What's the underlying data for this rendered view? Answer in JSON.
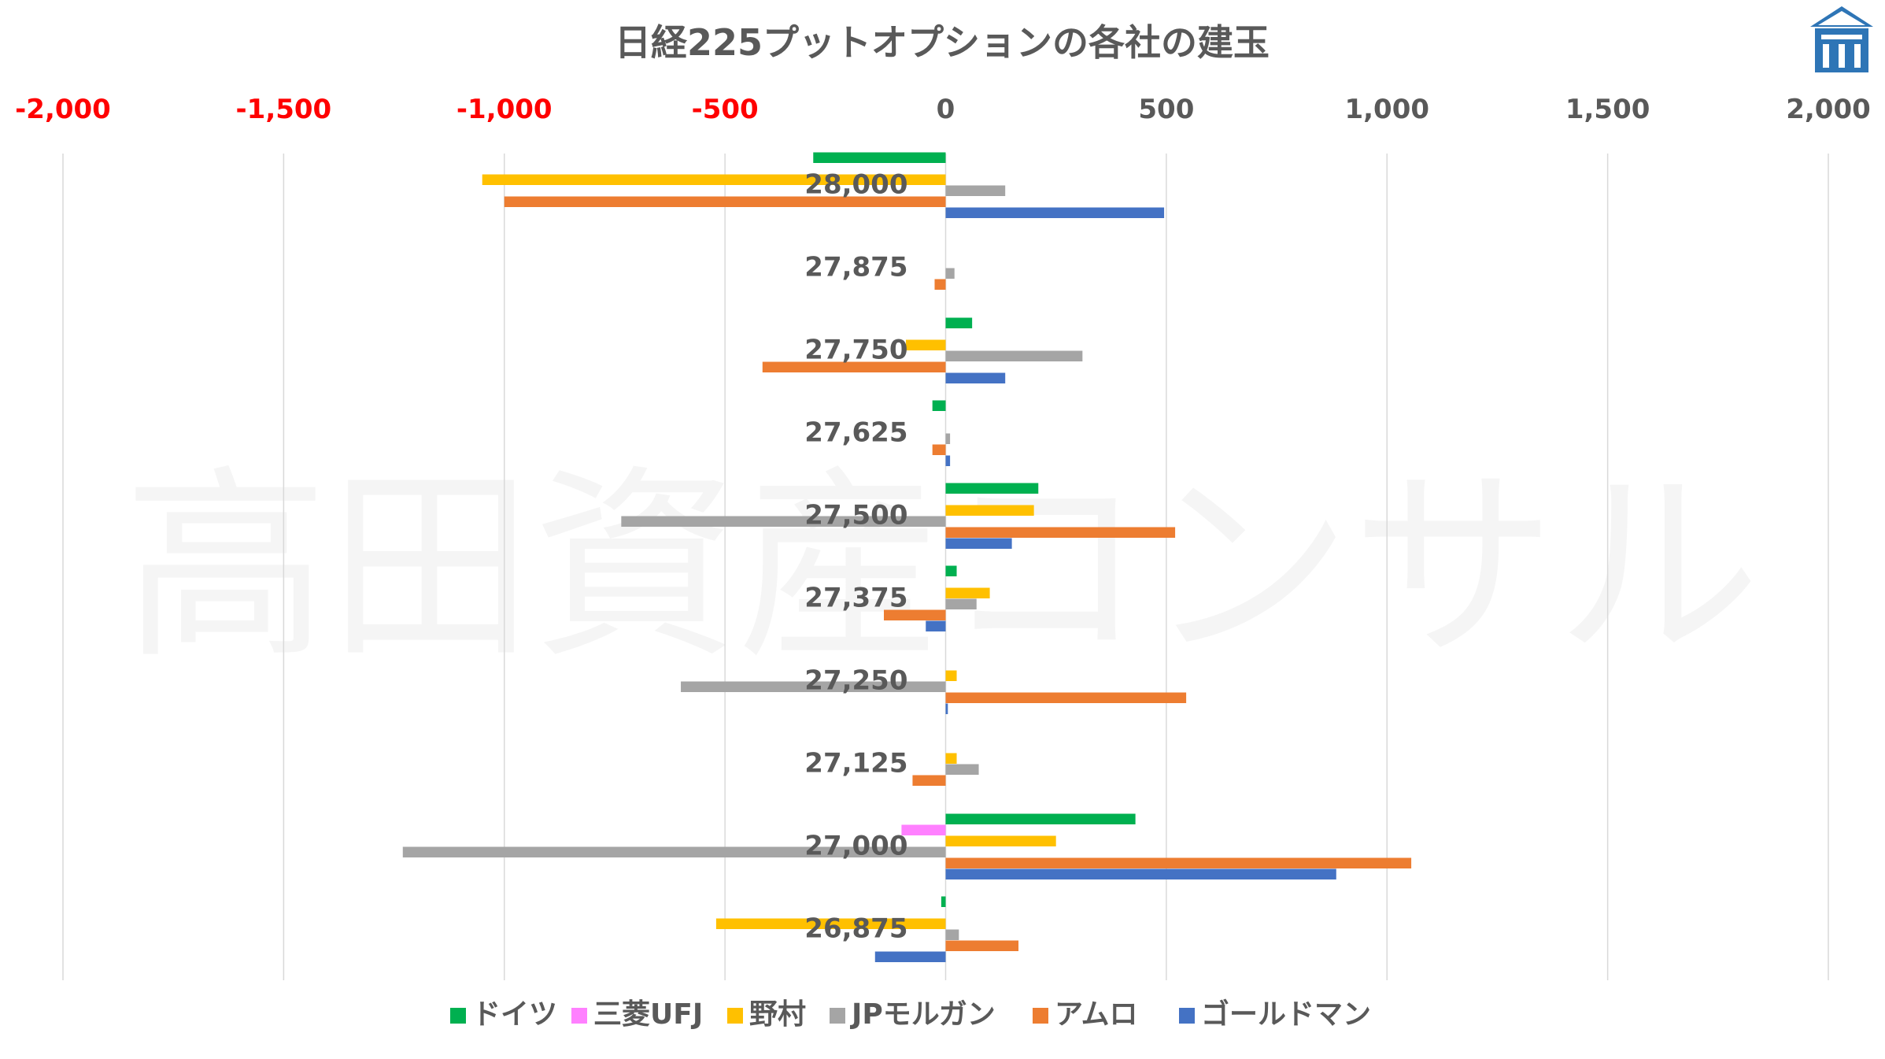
{
  "chart_data": {
    "type": "bar",
    "orientation": "horizontal",
    "title": "日経225プットオプションの各社の建玉",
    "watermark": "高田資産コンサル",
    "xlim": [
      -2000,
      2000
    ],
    "x_ticks": [
      -2000,
      -1500,
      -1000,
      -500,
      0,
      500,
      1000,
      1500,
      2000
    ],
    "x_tick_labels": [
      "-2,000",
      "-1,500",
      "-1,000",
      "-500",
      "0",
      "500",
      "1,000",
      "1,500",
      "2,000"
    ],
    "negative_tick_color": "#FF0000",
    "positive_tick_color": "#595959",
    "grid": true,
    "legend_position": "bottom",
    "categories": [
      "28,000",
      "27,875",
      "27,750",
      "27,625",
      "27,500",
      "27,375",
      "27,250",
      "27,125",
      "27,000",
      "26,875"
    ],
    "series": [
      {
        "name": "ドイツ",
        "color": "#00B050",
        "values": [
          -300,
          0,
          60,
          -30,
          210,
          25,
          0,
          0,
          430,
          -10
        ]
      },
      {
        "name": "三菱UFJ",
        "color": "#FF80FF",
        "values": [
          0,
          0,
          0,
          0,
          0,
          0,
          0,
          0,
          -100,
          0
        ]
      },
      {
        "name": "野村",
        "color": "#FFC000",
        "values": [
          -1050,
          0,
          -90,
          0,
          200,
          100,
          25,
          25,
          250,
          -520
        ]
      },
      {
        "name": "JPモルガン",
        "color": "#A5A5A5",
        "values": [
          135,
          20,
          310,
          10,
          -735,
          70,
          -600,
          75,
          -1230,
          30
        ]
      },
      {
        "name": "アムロ",
        "color": "#ED7D31",
        "values": [
          -1000,
          -25,
          -415,
          -30,
          520,
          -140,
          545,
          -75,
          1055,
          165
        ]
      },
      {
        "name": "ゴールドマン",
        "color": "#4472C4",
        "values": [
          495,
          0,
          135,
          10,
          150,
          -45,
          5,
          0,
          885,
          -160
        ]
      }
    ]
  },
  "logo": {
    "name": "logo-icon",
    "color": "#2E75B6"
  }
}
